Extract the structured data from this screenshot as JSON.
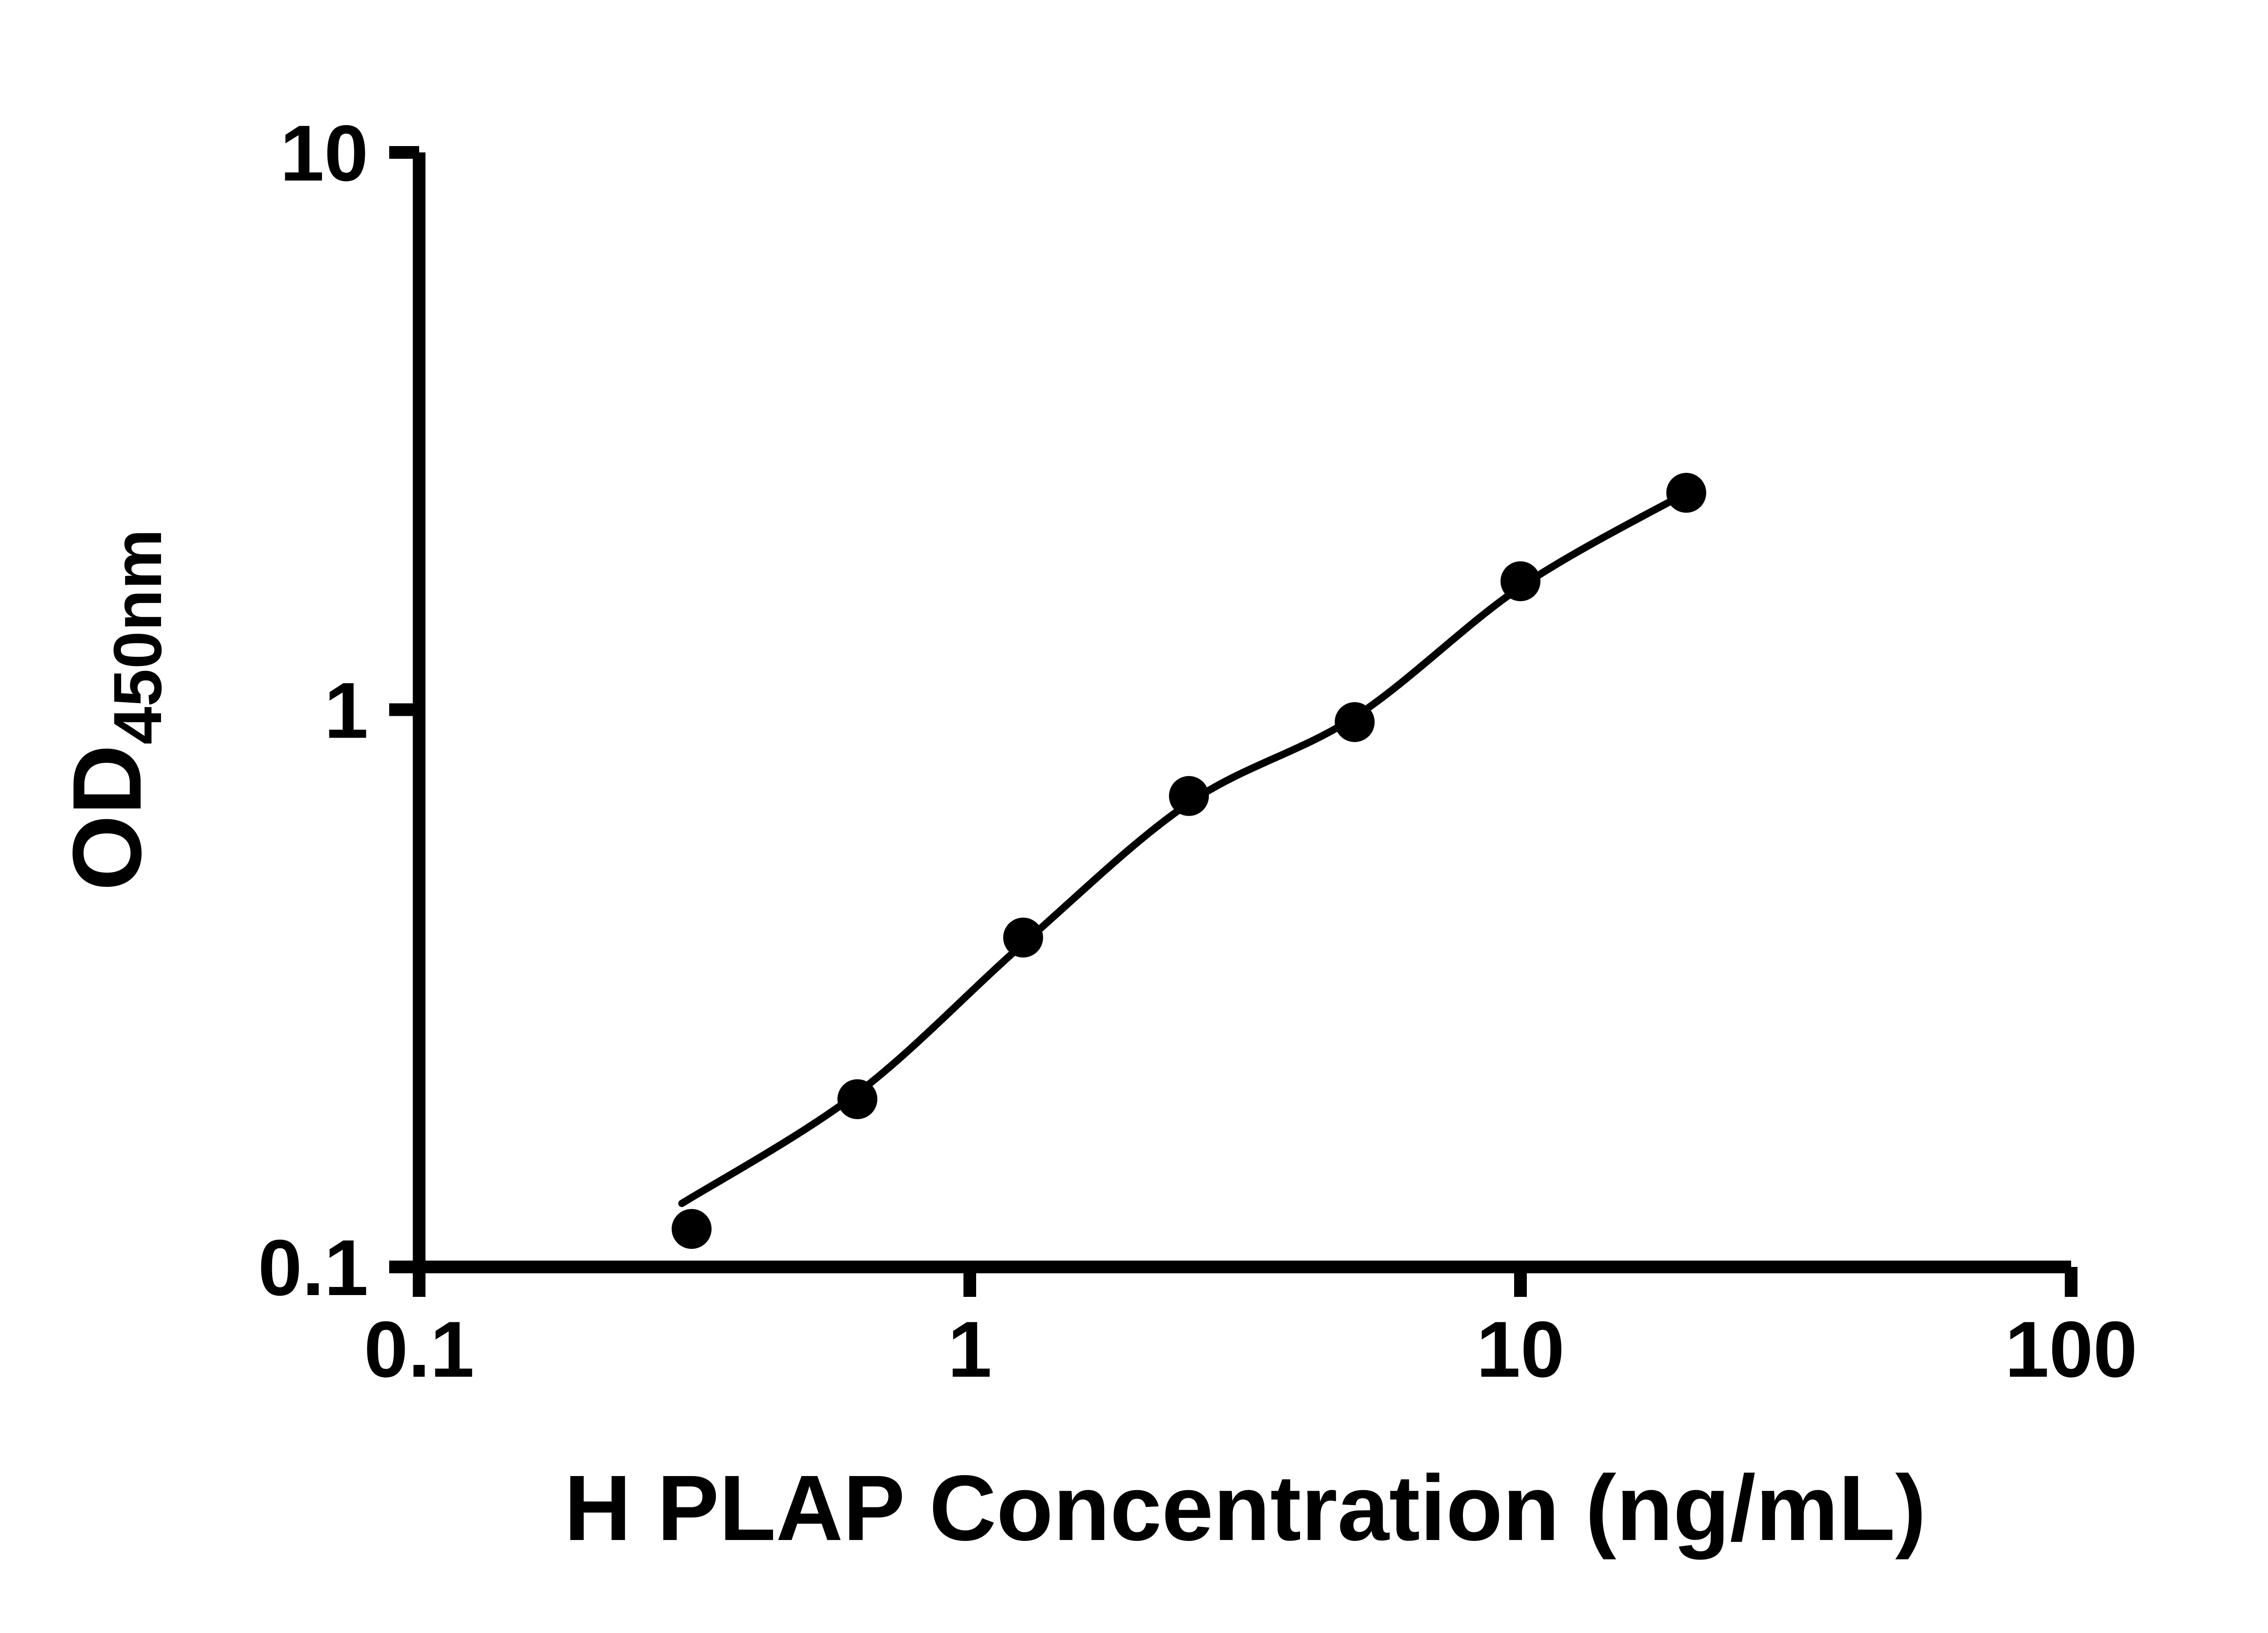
{
  "chart_data": {
    "type": "scatter",
    "title": "",
    "xlabel": "H PLAP Concentration (ng/mL)",
    "ylabel": "OD450nm",
    "ylabel_main": "OD",
    "ylabel_sub": "450nm",
    "x_scale": "log10",
    "y_scale": "log10",
    "xlim": [
      0.1,
      100
    ],
    "ylim": [
      0.1,
      10
    ],
    "grid": false,
    "legend": false,
    "x_ticks": [
      {
        "value": 0.1,
        "label": "0.1"
      },
      {
        "value": 1,
        "label": "1"
      },
      {
        "value": 10,
        "label": "10"
      },
      {
        "value": 100,
        "label": "100"
      }
    ],
    "y_ticks": [
      {
        "value": 0.1,
        "label": "0.1"
      },
      {
        "value": 1,
        "label": "1"
      },
      {
        "value": 10,
        "label": "10"
      }
    ],
    "series": [
      {
        "name": "standard-curve-points",
        "marker": "circle",
        "x": [
          0.3125,
          0.625,
          1.25,
          2.5,
          5,
          10,
          20
        ],
        "y": [
          0.117,
          0.2,
          0.39,
          0.7,
          0.95,
          1.7,
          2.45
        ]
      }
    ],
    "fit_curve": {
      "x": [
        0.3,
        0.625,
        1.25,
        2.5,
        5,
        10,
        20
      ],
      "y": [
        0.13,
        0.205,
        0.38,
        0.68,
        0.97,
        1.66,
        2.45
      ]
    },
    "marker_color": "#000000",
    "line_color": "#000000",
    "axis_color": "#000000",
    "background_color": "#ffffff"
  }
}
